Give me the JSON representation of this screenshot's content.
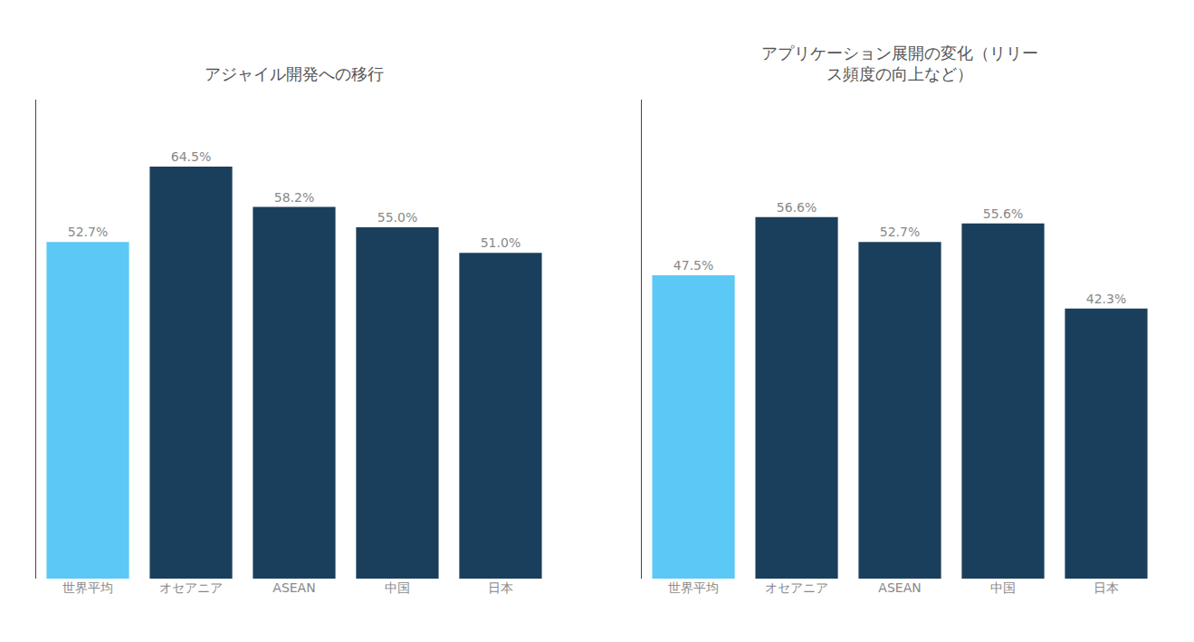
{
  "chart_data": [
    {
      "type": "bar",
      "title": "アジャイル開発への移行",
      "categories": [
        "世界平均",
        "オセアニア",
        "ASEAN",
        "中国",
        "日本"
      ],
      "values": [
        52.7,
        64.5,
        58.2,
        55.0,
        51.0
      ],
      "value_labels": [
        "52.7%",
        "64.5%",
        "58.2%",
        "55.0%",
        "51.0%"
      ],
      "colors": [
        "#5BC8F5",
        "#1A3F5C",
        "#1A3F5C",
        "#1A3F5C",
        "#1A3F5C"
      ],
      "ylim": [
        0,
        75
      ],
      "grid": false,
      "data_labels": true,
      "tick_labels": "x"
    },
    {
      "type": "bar",
      "title": "アプリケーション展開の変化（リリー\nス頻度の向上など）",
      "categories": [
        "世界平均",
        "オセアニア",
        "ASEAN",
        "中国",
        "日本"
      ],
      "values": [
        47.5,
        56.6,
        52.7,
        55.6,
        42.3
      ],
      "value_labels": [
        "47.5%",
        "56.6%",
        "52.7%",
        "55.6%",
        "42.3%"
      ],
      "colors": [
        "#5BC8F5",
        "#1A3F5C",
        "#1A3F5C",
        "#1A3F5C",
        "#1A3F5C"
      ],
      "ylim": [
        0,
        75
      ],
      "grid": false,
      "data_labels": true,
      "tick_labels": "x"
    }
  ]
}
